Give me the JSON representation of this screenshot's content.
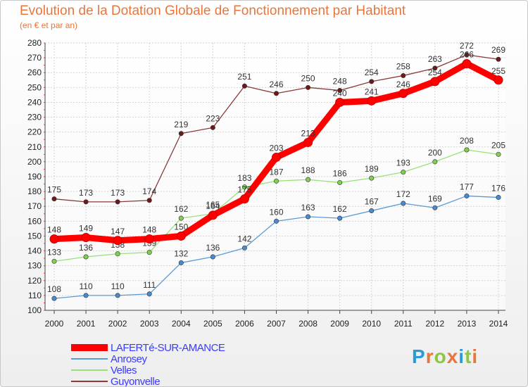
{
  "title": "Evolution de la Dotation Globale de Fonctionnement par Habitant",
  "subtitle": "(en € et par an)",
  "logo": {
    "text": "Proxiti",
    "colors": [
      "#2b9bd7",
      "#e8763a",
      "#8dc63f",
      "#e8763a",
      "#2b9bd7",
      "#8dc63f",
      "#e8763a"
    ]
  },
  "chart_data": {
    "type": "line",
    "title": "Evolution de la Dotation Globale de Fonctionnement par Habitant",
    "subtitle": "(en € et par an)",
    "x": [
      "2000",
      "2001",
      "2002",
      "2003",
      "2004",
      "2005",
      "2006",
      "2007",
      "2008",
      "2009",
      "2010",
      "2011",
      "2012",
      "2013",
      "2014"
    ],
    "ylim": [
      100,
      280
    ],
    "yticks": [
      100,
      110,
      120,
      130,
      140,
      150,
      160,
      170,
      180,
      190,
      200,
      210,
      220,
      230,
      240,
      250,
      260,
      270,
      280
    ],
    "grid": true,
    "series": [
      {
        "name": "LAFERTé-SUR-AMANCE",
        "color": "#ff0000",
        "marker": "#ff0000",
        "width": "thick",
        "values": [
          148,
          149,
          147,
          148,
          150,
          164,
          175,
          203,
          213,
          240,
          241,
          246,
          254,
          266,
          255
        ]
      },
      {
        "name": "Anrosey",
        "color": "#5b9bd5",
        "marker": "#4a8ad0",
        "width": "thin",
        "values": [
          108,
          110,
          110,
          111,
          132,
          136,
          142,
          160,
          163,
          162,
          167,
          172,
          169,
          177,
          176
        ]
      },
      {
        "name": "Velles",
        "color": "#9be07a",
        "marker": "#7fd04f",
        "width": "thin",
        "values": [
          133,
          136,
          138,
          139,
          162,
          165,
          183,
          187,
          188,
          186,
          189,
          193,
          200,
          208,
          205
        ]
      },
      {
        "name": "Guyonvelle",
        "color": "#8b3a3a",
        "marker": "#6b1a1a",
        "width": "thin",
        "values": [
          175,
          173,
          173,
          174,
          219,
          223,
          251,
          246,
          250,
          248,
          254,
          258,
          263,
          272,
          269
        ]
      }
    ]
  }
}
